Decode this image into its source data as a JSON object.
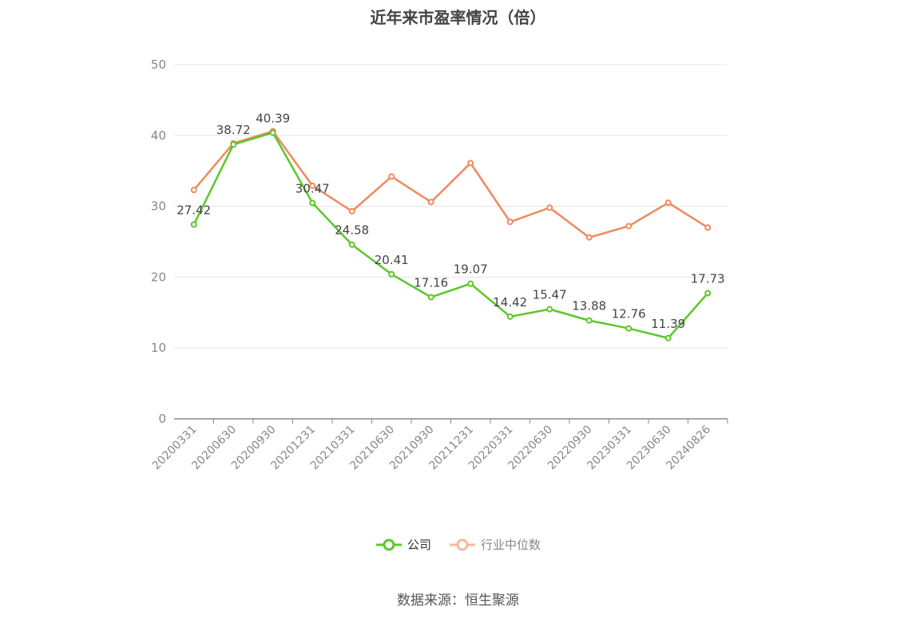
{
  "title": "近年来市盈率情况（倍）",
  "source": "数据来源：恒生聚源",
  "legend": {
    "company": "公司",
    "industry": "行业中位数"
  },
  "colors": {
    "company": "#5cc72b",
    "industry": "#f08a5d",
    "grid": "#e6e6e6",
    "axis": "#888888",
    "tick_text": "#888888",
    "label_text": "#444444"
  },
  "chart_data": {
    "type": "line",
    "title": "近年来市盈率情况（倍）",
    "categories": [
      "20200331",
      "20200630",
      "20200930",
      "20201231",
      "20210331",
      "20210630",
      "20210930",
      "20211231",
      "20220331",
      "20220630",
      "20220930",
      "20230331",
      "20230630",
      "20240826"
    ],
    "series": [
      {
        "name": "公司",
        "values": [
          27.42,
          38.72,
          40.39,
          30.47,
          24.58,
          20.41,
          17.16,
          19.07,
          14.42,
          15.47,
          13.88,
          12.76,
          11.39,
          17.73
        ],
        "data_labels": true
      },
      {
        "name": "行业中位数",
        "values": [
          32.3,
          38.9,
          40.6,
          32.9,
          29.3,
          34.2,
          30.6,
          36.1,
          27.8,
          29.8,
          25.6,
          27.2,
          30.5,
          27.0
        ],
        "data_labels": false
      }
    ],
    "yticks": [
      0,
      10,
      20,
      30,
      40,
      50
    ],
    "ylim": [
      0,
      50
    ],
    "grid": true,
    "legend_position": "bottom"
  }
}
